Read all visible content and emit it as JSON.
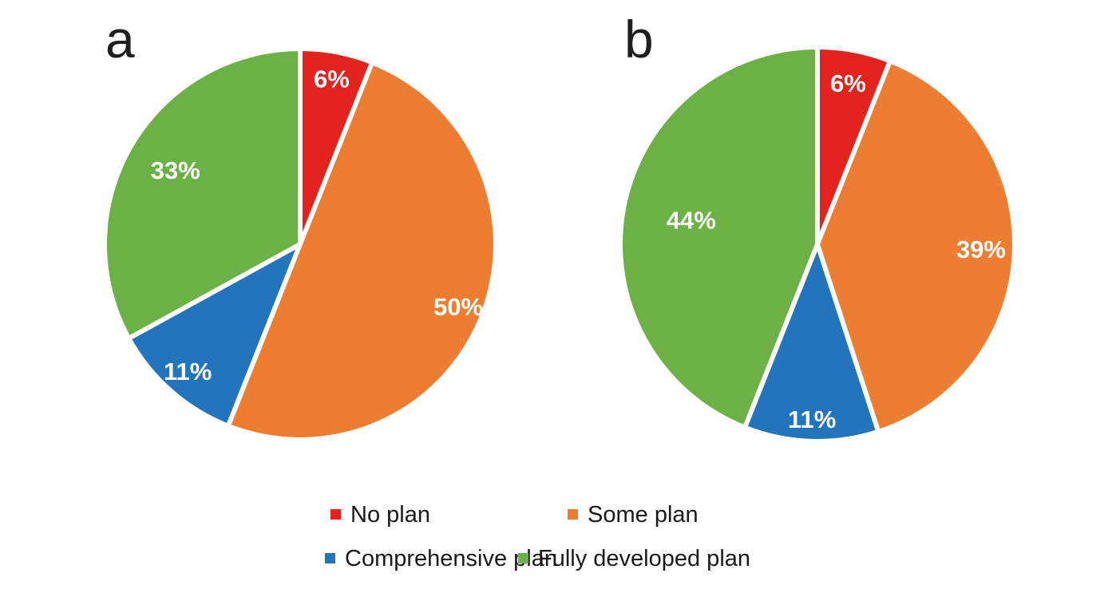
{
  "figure": {
    "background_color": "#ffffff",
    "panels": [
      "a",
      "b"
    ]
  },
  "colors": {
    "no_plan": "#E4231F",
    "some_plan": "#ED7D31",
    "comprehensive_plan": "#2274BC",
    "fully_developed_plan": "#6CB145",
    "separator": "#ffffff",
    "label_text": "#ffffff",
    "legend_text": "#1a1a1a"
  },
  "chart_data": [
    {
      "type": "pie",
      "panel_label": "a",
      "start_angle_deg": 0,
      "direction": "clockwise",
      "legend_position": "bottom",
      "slices": [
        {
          "label": "No plan",
          "value": 6,
          "display": "6%",
          "color": "#E4231F",
          "label_r": 0.87
        },
        {
          "label": "Some plan",
          "value": 50,
          "display": "50%",
          "color": "#ED7D31",
          "label_r": 0.88
        },
        {
          "label": "Comprehensive plan",
          "value": 11,
          "display": "11%",
          "color": "#2274BC",
          "label_r": 0.88
        },
        {
          "label": "Fully developed plan",
          "value": 33,
          "display": "33%",
          "color": "#6CB145",
          "label_r": 0.75
        }
      ]
    },
    {
      "type": "pie",
      "panel_label": "b",
      "start_angle_deg": 0,
      "direction": "clockwise",
      "legend_position": "bottom",
      "slices": [
        {
          "label": "No plan",
          "value": 6,
          "display": "6%",
          "color": "#E4231F",
          "label_r": 0.84
        },
        {
          "label": "Some plan",
          "value": 39,
          "display": "39%",
          "color": "#ED7D31",
          "label_r": 0.84
        },
        {
          "label": "Comprehensive plan",
          "value": 11,
          "display": "11%",
          "color": "#2274BC",
          "label_r": 0.9
        },
        {
          "label": "Fully developed plan",
          "value": 44,
          "display": "44%",
          "color": "#6CB145",
          "label_r": 0.66
        }
      ]
    }
  ],
  "legend": {
    "items": [
      {
        "label": "No plan",
        "color": "#E4231F"
      },
      {
        "label": "Some plan",
        "color": "#ED7D31"
      },
      {
        "label": "Comprehensive plan",
        "color": "#2274BC"
      },
      {
        "label": "Fully developed plan",
        "color": "#6CB145"
      }
    ]
  }
}
